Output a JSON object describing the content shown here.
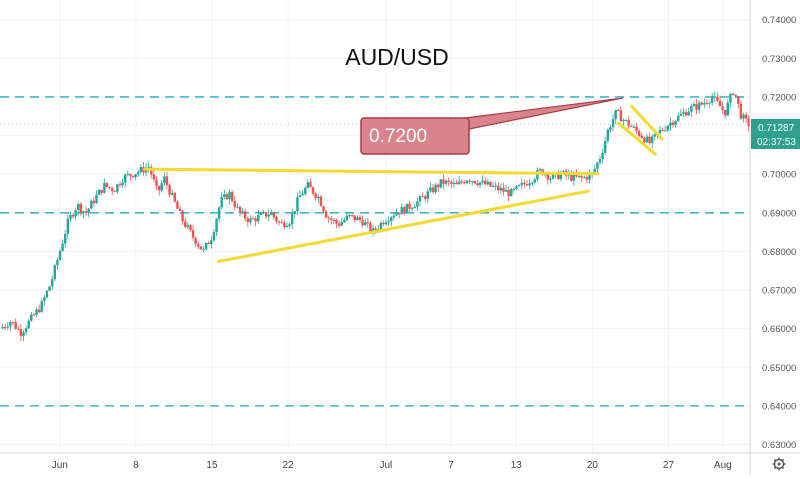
{
  "title": "AUD/USD",
  "callout": "0.7200",
  "price_tag": "0.71287",
  "countdown": "02:37:53",
  "colors": {
    "up": "#26a69a",
    "down": "#ef5350",
    "dash": "#3fb8c6",
    "pattern": "#f5d830",
    "callout_fill": "#d9848a",
    "callout_stroke": "#a83a45",
    "price_tag_bg": "#2f9f8e"
  },
  "chart_data": {
    "type": "candlestick",
    "title": "AUD/USD",
    "y_ticks": [
      "0.74000",
      "0.73000",
      "0.72000",
      "0.71000",
      "0.70000",
      "0.69000",
      "0.68000",
      "0.67000",
      "0.66000",
      "0.65000",
      "0.64000",
      "0.63000"
    ],
    "ylim": [
      0.6278,
      0.7451
    ],
    "x_ticks": [
      {
        "label": "Jun",
        "d": 0
      },
      {
        "label": "8",
        "d": 7
      },
      {
        "label": "15",
        "d": 14
      },
      {
        "label": "22",
        "d": 21
      },
      {
        "label": "Jul",
        "d": 30
      },
      {
        "label": "7",
        "d": 36
      },
      {
        "label": "13",
        "d": 42
      },
      {
        "label": "20",
        "d": 49
      },
      {
        "label": "27",
        "d": 56
      },
      {
        "label": "Aug",
        "d": 61
      }
    ],
    "xlim": [
      -5.5,
      63.5
    ],
    "anchors": [
      [
        -5.5,
        0.66
      ],
      [
        -4.5,
        0.662
      ],
      [
        -3.6,
        0.659
      ],
      [
        -2.5,
        0.663
      ],
      [
        -1.7,
        0.666
      ],
      [
        -0.8,
        0.672
      ],
      [
        0.0,
        0.68
      ],
      [
        0.8,
        0.688
      ],
      [
        1.6,
        0.692
      ],
      [
        2.4,
        0.69
      ],
      [
        3.3,
        0.694
      ],
      [
        4.1,
        0.697
      ],
      [
        5.0,
        0.696
      ],
      [
        5.8,
        0.699
      ],
      [
        6.6,
        0.7
      ],
      [
        7.5,
        0.701
      ],
      [
        8.2,
        0.702
      ],
      [
        9.0,
        0.695
      ],
      [
        9.6,
        0.699
      ],
      [
        10.5,
        0.693
      ],
      [
        11.3,
        0.688
      ],
      [
        12.2,
        0.684
      ],
      [
        13.2,
        0.68
      ],
      [
        14.0,
        0.684
      ],
      [
        14.8,
        0.693
      ],
      [
        15.6,
        0.695
      ],
      [
        16.5,
        0.69
      ],
      [
        17.5,
        0.688
      ],
      [
        18.4,
        0.689
      ],
      [
        19.4,
        0.69
      ],
      [
        20.3,
        0.687
      ],
      [
        21.2,
        0.688
      ],
      [
        22.0,
        0.694
      ],
      [
        22.8,
        0.697
      ],
      [
        23.8,
        0.694
      ],
      [
        24.6,
        0.689
      ],
      [
        25.6,
        0.687
      ],
      [
        26.6,
        0.689
      ],
      [
        27.8,
        0.688
      ],
      [
        28.8,
        0.685
      ],
      [
        29.8,
        0.688
      ],
      [
        30.8,
        0.69
      ],
      [
        31.8,
        0.691
      ],
      [
        33.0,
        0.693
      ],
      [
        34.3,
        0.696
      ],
      [
        35.2,
        0.698
      ],
      [
        36.5,
        0.697
      ],
      [
        37.5,
        0.699
      ],
      [
        38.5,
        0.698
      ],
      [
        39.5,
        0.697
      ],
      [
        40.5,
        0.696
      ],
      [
        41.5,
        0.695
      ],
      [
        42.5,
        0.697
      ],
      [
        43.5,
        0.699
      ],
      [
        44.3,
        0.701
      ],
      [
        45.2,
        0.699
      ],
      [
        46.2,
        0.7
      ],
      [
        47.3,
        0.699
      ],
      [
        48.2,
        0.699
      ],
      [
        49.0,
        0.7
      ],
      [
        49.8,
        0.705
      ],
      [
        50.5,
        0.712
      ],
      [
        51.2,
        0.716
      ],
      [
        51.9,
        0.714
      ],
      [
        52.7,
        0.712
      ],
      [
        53.5,
        0.71
      ],
      [
        54.3,
        0.708
      ],
      [
        55.2,
        0.711
      ],
      [
        56.0,
        0.713
      ],
      [
        57.0,
        0.715
      ],
      [
        58.0,
        0.717
      ],
      [
        59.0,
        0.718
      ],
      [
        60.0,
        0.72
      ],
      [
        60.6,
        0.718
      ],
      [
        61.2,
        0.716
      ],
      [
        62.0,
        0.722
      ],
      [
        62.7,
        0.715
      ],
      [
        63.3,
        0.713
      ]
    ],
    "horizontal_lines": [
      0.72,
      0.69,
      0.64
    ],
    "pattern_lines": [
      [
        [
          7.8,
          0.7013
        ],
        [
          49.5,
          0.7001
        ]
      ],
      [
        [
          14.6,
          0.6774
        ],
        [
          48.6,
          0.6956
        ]
      ],
      [
        [
          51.4,
          0.7132
        ],
        [
          54.8,
          0.7052
        ]
      ],
      [
        [
          52.6,
          0.7176
        ],
        [
          55.4,
          0.7091
        ]
      ]
    ],
    "callout_target": [
      51.8,
      0.7197
    ],
    "last_price": 0.71287
  }
}
